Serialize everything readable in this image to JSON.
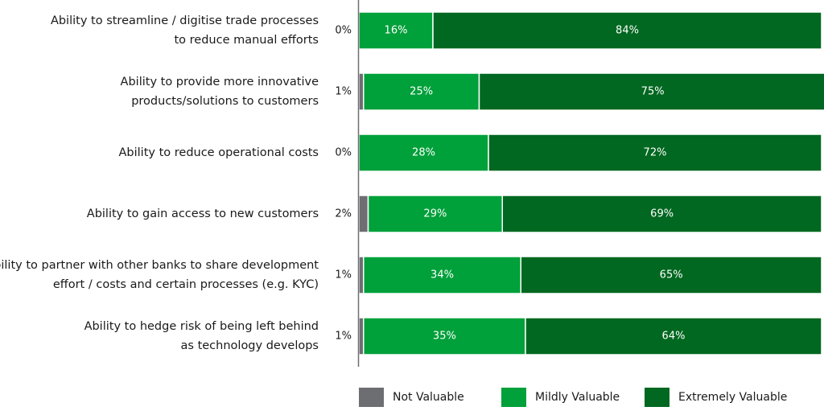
{
  "chart_data": {
    "type": "bar",
    "orientation": "horizontal",
    "stacked": true,
    "title": "",
    "xlabel": "",
    "ylabel": "",
    "xlim": [
      0,
      100
    ],
    "grid": false,
    "legend_position": "bottom",
    "categories": [
      [
        "Ability to streamline / digitise trade processes",
        "to reduce manual efforts"
      ],
      [
        "Ability to provide more innovative",
        "products/solutions to customers"
      ],
      [
        "Ability to reduce operational costs"
      ],
      [
        "Ability to gain access to new customers"
      ],
      [
        "Ability to partner with other banks to share development",
        "effort / costs and certain processes (e.g. KYC)"
      ],
      [
        "Ability to hedge risk of being left behind",
        "as technology develops"
      ]
    ],
    "series": [
      {
        "name": "Not Valuable",
        "color": "#6d6e71",
        "values": [
          0,
          1,
          0,
          2,
          1,
          1
        ],
        "labels": [
          "0%",
          "1%",
          "0%",
          "2%",
          "1%",
          "1%"
        ]
      },
      {
        "name": "Mildly Valuable",
        "color": "#00a03a",
        "values": [
          16,
          25,
          28,
          29,
          34,
          35
        ],
        "labels": [
          "16%",
          "25%",
          "28%",
          "29%",
          "34%",
          "35%"
        ]
      },
      {
        "name": "Extremely Valuable",
        "color": "#006820",
        "values": [
          84,
          75,
          72,
          69,
          65,
          64
        ],
        "labels": [
          "84%",
          "75%",
          "72%",
          "69%",
          "65%",
          "64%"
        ]
      }
    ]
  }
}
